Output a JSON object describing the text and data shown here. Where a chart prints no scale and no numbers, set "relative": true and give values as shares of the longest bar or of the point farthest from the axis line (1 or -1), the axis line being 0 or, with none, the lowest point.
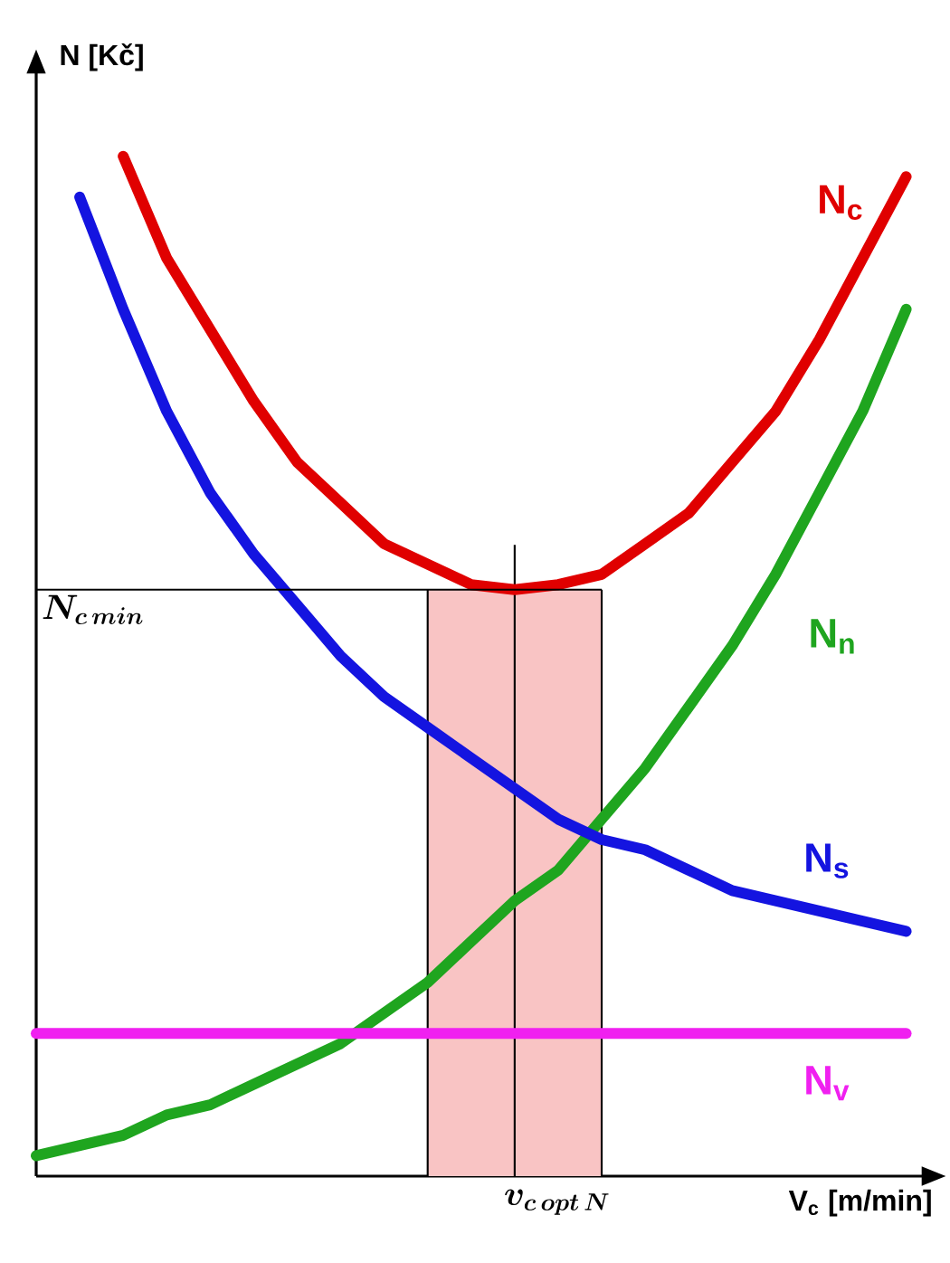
{
  "chart_data": {
    "type": "line",
    "relative": true,
    "xlabel": "V$_{c}$ [m/min]",
    "ylabel": "N [Kč]",
    "categories": [
      null,
      null,
      null,
      null,
      null,
      null,
      null,
      null,
      null,
      null,
      null,
      null,
      null,
      null,
      null,
      null,
      null,
      null,
      null,
      null,
      null
    ],
    "series": [
      {
        "name": "N$_{c}$",
        "color": "#e00000",
        "values": [
          null,
          null,
          1.0,
          0.9,
          0.83,
          0.76,
          0.7,
          0.66,
          0.62,
          0.6,
          0.58,
          0.575,
          0.58,
          0.59,
          0.62,
          0.65,
          0.7,
          0.75,
          0.82,
          0.9,
          0.98
        ]
      },
      {
        "name": "N$_{n}$",
        "color": "#1fa51f",
        "values": [
          0.02,
          0.03,
          0.04,
          0.06,
          0.07,
          0.09,
          0.11,
          0.13,
          0.16,
          0.19,
          0.23,
          0.27,
          0.3,
          0.35,
          0.4,
          0.46,
          0.52,
          0.59,
          0.67,
          0.75,
          0.85
        ]
      },
      {
        "name": "N$_{s}$",
        "color": "#1414e0",
        "values": [
          null,
          0.96,
          0.85,
          0.75,
          0.67,
          0.61,
          0.56,
          0.51,
          0.47,
          0.44,
          0.41,
          0.38,
          0.35,
          0.33,
          0.32,
          0.3,
          0.28,
          0.27,
          0.26,
          0.25,
          0.24
        ]
      },
      {
        "name": "N$_{v}$",
        "color": "#f020f0",
        "values": [
          0.14,
          0.14,
          0.14,
          0.14,
          0.14,
          0.14,
          0.14,
          0.14,
          0.14,
          0.14,
          0.14,
          0.14,
          0.14,
          0.14,
          0.14,
          0.14,
          0.14,
          0.14,
          0.14,
          0.14,
          0.14
        ]
      }
    ],
    "ref_lines": [
      {
        "axis": "y",
        "value": 0.575,
        "label": "N_{c\\,min}"
      }
    ],
    "annotations": [
      "v_{c\\,opt\\,N}"
    ]
  }
}
